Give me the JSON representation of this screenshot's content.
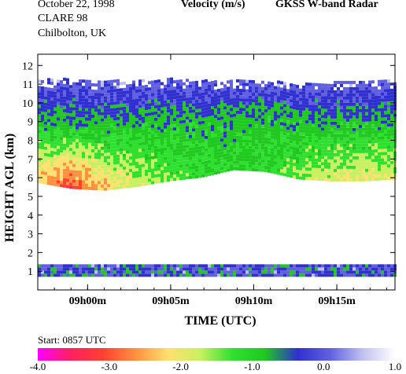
{
  "header": {
    "date": "October  22, 1998",
    "campaign": "CLARE 98",
    "site": "Chilbolton, UK",
    "title": "Velocity (m/s)",
    "radar": "GKSS  W-band Radar"
  },
  "chart_data": {
    "type": "heatmap",
    "title": "Velocity (m/s)",
    "xlabel": "TIME (UTC)",
    "ylabel": "HEIGHT AGL (km)",
    "ylim": [
      0,
      12.6
    ],
    "yticks": [
      1,
      2,
      3,
      4,
      5,
      6,
      7,
      8,
      9,
      10,
      11,
      12
    ],
    "xlim_minutes_after_0857": [
      0,
      21.5
    ],
    "xticks": [
      {
        "label": "09h00m",
        "minute": 3
      },
      {
        "label": "09h05m",
        "minute": 8
      },
      {
        "label": "09h10m",
        "minute": 13
      },
      {
        "label": "09h15m",
        "minute": 18
      }
    ],
    "start_label": "Start: 0857 UTC",
    "colorbar": {
      "range": [
        -4.0,
        1.0
      ],
      "ticks": [
        "-4.0",
        "-3.0",
        "-2.0",
        "-1.0",
        "0.0",
        "1.0"
      ],
      "colors": [
        "#ff00ff",
        "#ff2060",
        "#ff4030",
        "#ff9040",
        "#ffe070",
        "#c8f060",
        "#30e030",
        "#20c820",
        "#3030d0",
        "#6060e0",
        "#c0c0f0",
        "#ffffff"
      ]
    },
    "cloud_layer": {
      "base_km": [
        5.7,
        5.4,
        5.3,
        5.5,
        5.8,
        6.0,
        6.4,
        6.3,
        5.9,
        5.8,
        5.8,
        5.9
      ],
      "top_km": [
        11.2,
        11.2,
        11.1,
        11.1,
        11.2,
        11.1,
        11.1,
        11.1,
        11.1,
        11.0,
        11.1,
        11.1
      ],
      "base_velocity_m_s": [
        -2.3,
        -3.1,
        -2.4,
        -1.8,
        -1.4,
        -1.2,
        -1.0,
        -1.1,
        -1.6,
        -1.9,
        -2.0,
        -1.8
      ]
    },
    "low_layer": {
      "base_km": 0.7,
      "top_km": 1.3
    }
  }
}
